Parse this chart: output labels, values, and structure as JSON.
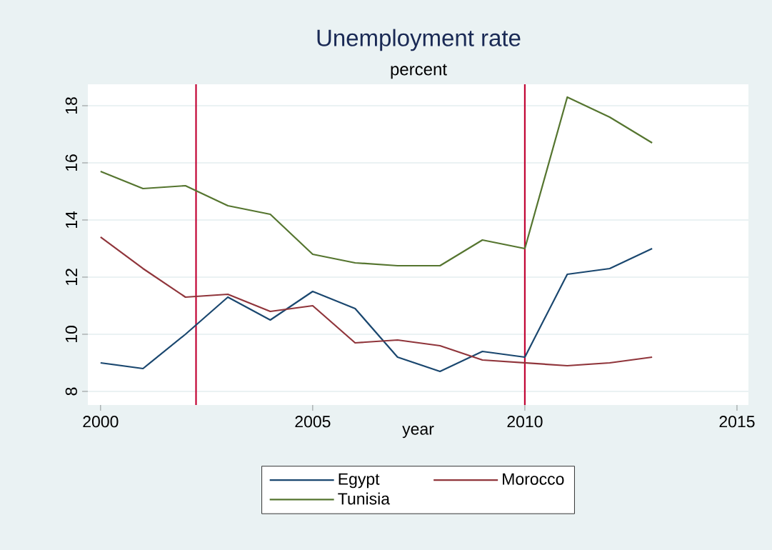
{
  "chart_data": {
    "type": "line",
    "title": "Unemployment rate",
    "subtitle": "percent",
    "xlabel": "year",
    "x": [
      2000,
      2001,
      2002,
      2003,
      2004,
      2005,
      2006,
      2007,
      2008,
      2009,
      2010,
      2011,
      2012,
      2013
    ],
    "series": [
      {
        "name": "Egypt",
        "color": "#1a476f",
        "values": [
          9.0,
          8.8,
          10.0,
          11.3,
          10.5,
          11.5,
          10.9,
          9.2,
          8.7,
          9.4,
          9.2,
          12.1,
          12.3,
          13.0
        ]
      },
      {
        "name": "Morocco",
        "color": "#90353b",
        "values": [
          13.4,
          12.3,
          11.3,
          11.4,
          10.8,
          11.0,
          9.7,
          9.8,
          9.6,
          9.1,
          9.0,
          8.9,
          9.0,
          9.2
        ]
      },
      {
        "name": "Tunisia",
        "color": "#55752f",
        "values": [
          15.7,
          15.1,
          15.2,
          14.5,
          14.2,
          12.8,
          12.5,
          12.4,
          12.4,
          13.3,
          13.0,
          18.3,
          17.6,
          16.7
        ]
      }
    ],
    "xlim": [
      1999.7,
      2015.27
    ],
    "xticks": [
      2000,
      2005,
      2010,
      2015
    ],
    "ylim": [
      7.525,
      18.75
    ],
    "yticks": [
      8,
      10,
      12,
      14,
      16,
      18
    ],
    "ref_lines": [
      {
        "axis": "x",
        "value": 2002.25,
        "color": "#c10534"
      },
      {
        "axis": "x",
        "value": 2010,
        "color": "#c10534"
      }
    ],
    "grid": "y",
    "legend": "bottom",
    "marker": "none",
    "line_style": "solid"
  }
}
